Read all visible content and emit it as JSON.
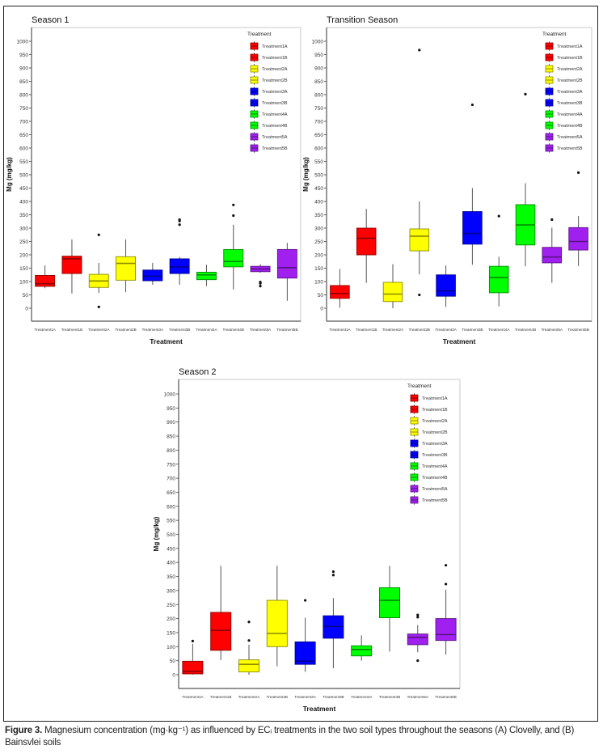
{
  "figure": {
    "caption_label": "Figure 3.",
    "caption_text": "Magnesium concentration (mg·kg⁻¹) as influenced by ECᵢ treatments in the two soil types throughout the seasons (A) Clovelly, and (B) Bainsvlei soils"
  },
  "chart_data": [
    {
      "type": "box",
      "title": "Season 1",
      "xlabel": "Treatment",
      "ylabel": "Mg (mg/kg)",
      "ylim": [
        -50,
        1050
      ],
      "yticks": [
        0,
        50,
        100,
        150,
        200,
        250,
        300,
        350,
        400,
        450,
        500,
        550,
        600,
        650,
        700,
        750,
        800,
        850,
        900,
        950,
        1000
      ],
      "legend_title": "Treatment",
      "legend_position": "top-right",
      "categories": [
        "Treatment1A",
        "Treatment1B",
        "Treatment2A",
        "Treatment2B",
        "Treatment3A",
        "Treatment3B",
        "Treatment4A",
        "Treatment4B",
        "Treatment5A",
        "Treatment5B"
      ],
      "colors": [
        "#ff0000",
        "#ff0000",
        "#ffff00",
        "#ffff00",
        "#0000ff",
        "#0000ff",
        "#00ff00",
        "#00ff00",
        "#a020f0",
        "#a020f0"
      ],
      "boxes": [
        {
          "min": 75,
          "q1": 82,
          "median": 92,
          "q3": 123,
          "max": 160,
          "outliers": []
        },
        {
          "min": 55,
          "q1": 130,
          "median": 185,
          "q3": 195,
          "max": 258,
          "outliers": []
        },
        {
          "min": 57,
          "q1": 78,
          "median": 102,
          "q3": 127,
          "max": 170,
          "outliers": [
            5,
            275
          ]
        },
        {
          "min": 60,
          "q1": 105,
          "median": 168,
          "q3": 193,
          "max": 258,
          "outliers": []
        },
        {
          "min": 88,
          "q1": 103,
          "median": 120,
          "q3": 143,
          "max": 170,
          "outliers": []
        },
        {
          "min": 88,
          "q1": 130,
          "median": 155,
          "q3": 185,
          "max": 192,
          "outliers": [
            313,
            327,
            332
          ]
        },
        {
          "min": 83,
          "q1": 107,
          "median": 125,
          "q3": 135,
          "max": 163,
          "outliers": []
        },
        {
          "min": 70,
          "q1": 155,
          "median": 175,
          "q3": 220,
          "max": 313,
          "outliers": [
            347,
            387
          ]
        },
        {
          "min": 133,
          "q1": 137,
          "median": 147,
          "q3": 157,
          "max": 165,
          "outliers": [
            83,
            93,
            98
          ]
        },
        {
          "min": 28,
          "q1": 113,
          "median": 152,
          "q3": 220,
          "max": 245,
          "outliers": []
        }
      ]
    },
    {
      "type": "box",
      "title": "Transition Season",
      "xlabel": "Treatment",
      "ylabel": "Mg (mg/kg)",
      "ylim": [
        -50,
        1050
      ],
      "yticks": [
        0,
        50,
        100,
        150,
        200,
        250,
        300,
        350,
        400,
        450,
        500,
        550,
        600,
        650,
        700,
        750,
        800,
        850,
        900,
        950,
        1000
      ],
      "legend_title": "Treatment",
      "legend_position": "top-right",
      "categories": [
        "Treatment1A",
        "Treatment1B",
        "Treatment2A",
        "Treatment2B",
        "Treatment3A",
        "Treatment3B",
        "Treatment4A",
        "Treatment4B",
        "Treatment5A",
        "Treatment5B"
      ],
      "colors": [
        "#ff0000",
        "#ff0000",
        "#ffff00",
        "#ffff00",
        "#0000ff",
        "#0000ff",
        "#00ff00",
        "#00ff00",
        "#a020f0",
        "#a020f0"
      ],
      "boxes": [
        {
          "min": 2,
          "q1": 37,
          "median": 55,
          "q3": 85,
          "max": 147,
          "outliers": []
        },
        {
          "min": 95,
          "q1": 200,
          "median": 262,
          "q3": 300,
          "max": 372,
          "outliers": []
        },
        {
          "min": 0,
          "q1": 25,
          "median": 53,
          "q3": 97,
          "max": 165,
          "outliers": []
        },
        {
          "min": 127,
          "q1": 215,
          "median": 270,
          "q3": 297,
          "max": 400,
          "outliers": [
            50,
            967
          ]
        },
        {
          "min": 5,
          "q1": 45,
          "median": 65,
          "q3": 125,
          "max": 160,
          "outliers": []
        },
        {
          "min": 163,
          "q1": 240,
          "median": 280,
          "q3": 362,
          "max": 450,
          "outliers": [
            762
          ]
        },
        {
          "min": 7,
          "q1": 58,
          "median": 115,
          "q3": 157,
          "max": 193,
          "outliers": [
            345
          ]
        },
        {
          "min": 157,
          "q1": 237,
          "median": 312,
          "q3": 388,
          "max": 468,
          "outliers": [
            802
          ]
        },
        {
          "min": 95,
          "q1": 170,
          "median": 192,
          "q3": 228,
          "max": 302,
          "outliers": [
            332
          ]
        },
        {
          "min": 158,
          "q1": 218,
          "median": 250,
          "q3": 302,
          "max": 345,
          "outliers": [
            508
          ]
        }
      ]
    },
    {
      "type": "box",
      "title": "Season 2",
      "xlabel": "Treatment",
      "ylabel": "Mg (mg/kg)",
      "ylim": [
        -50,
        1050
      ],
      "yticks": [
        0,
        50,
        100,
        150,
        200,
        250,
        300,
        350,
        400,
        450,
        500,
        550,
        600,
        650,
        700,
        750,
        800,
        850,
        900,
        950,
        1000
      ],
      "legend_title": "Treatment",
      "legend_position": "top-right",
      "categories": [
        "Treatment1A",
        "Treatment1B",
        "Treatment2A",
        "Treatment2B",
        "Treatment3A",
        "Treatment3B",
        "Treatment4A",
        "Treatment4B",
        "Treatment5A",
        "Treatment5B"
      ],
      "colors": [
        "#ff0000",
        "#ff0000",
        "#ffff00",
        "#ffff00",
        "#0000ff",
        "#0000ff",
        "#00ff00",
        "#00ff00",
        "#a020f0",
        "#a020f0"
      ],
      "boxes": [
        {
          "min": 0,
          "q1": 3,
          "median": 12,
          "q3": 48,
          "max": 110,
          "outliers": [
            120
          ]
        },
        {
          "min": 52,
          "q1": 87,
          "median": 158,
          "q3": 222,
          "max": 388,
          "outliers": []
        },
        {
          "min": 0,
          "q1": 10,
          "median": 37,
          "q3": 53,
          "max": 107,
          "outliers": [
            122,
            188
          ]
        },
        {
          "min": 30,
          "q1": 100,
          "median": 147,
          "q3": 265,
          "max": 388,
          "outliers": []
        },
        {
          "min": 10,
          "q1": 37,
          "median": 48,
          "q3": 117,
          "max": 203,
          "outliers": [
            265
          ]
        },
        {
          "min": 23,
          "q1": 130,
          "median": 172,
          "q3": 210,
          "max": 273,
          "outliers": [
            355,
            367
          ]
        },
        {
          "min": 50,
          "q1": 67,
          "median": 90,
          "q3": 103,
          "max": 140,
          "outliers": []
        },
        {
          "min": 82,
          "q1": 203,
          "median": 265,
          "q3": 310,
          "max": 388,
          "outliers": []
        },
        {
          "min": 80,
          "q1": 107,
          "median": 133,
          "q3": 145,
          "max": 177,
          "outliers": [
            50,
            205,
            213
          ]
        },
        {
          "min": 72,
          "q1": 122,
          "median": 143,
          "q3": 200,
          "max": 303,
          "outliers": [
            323,
            390
          ]
        }
      ]
    }
  ]
}
